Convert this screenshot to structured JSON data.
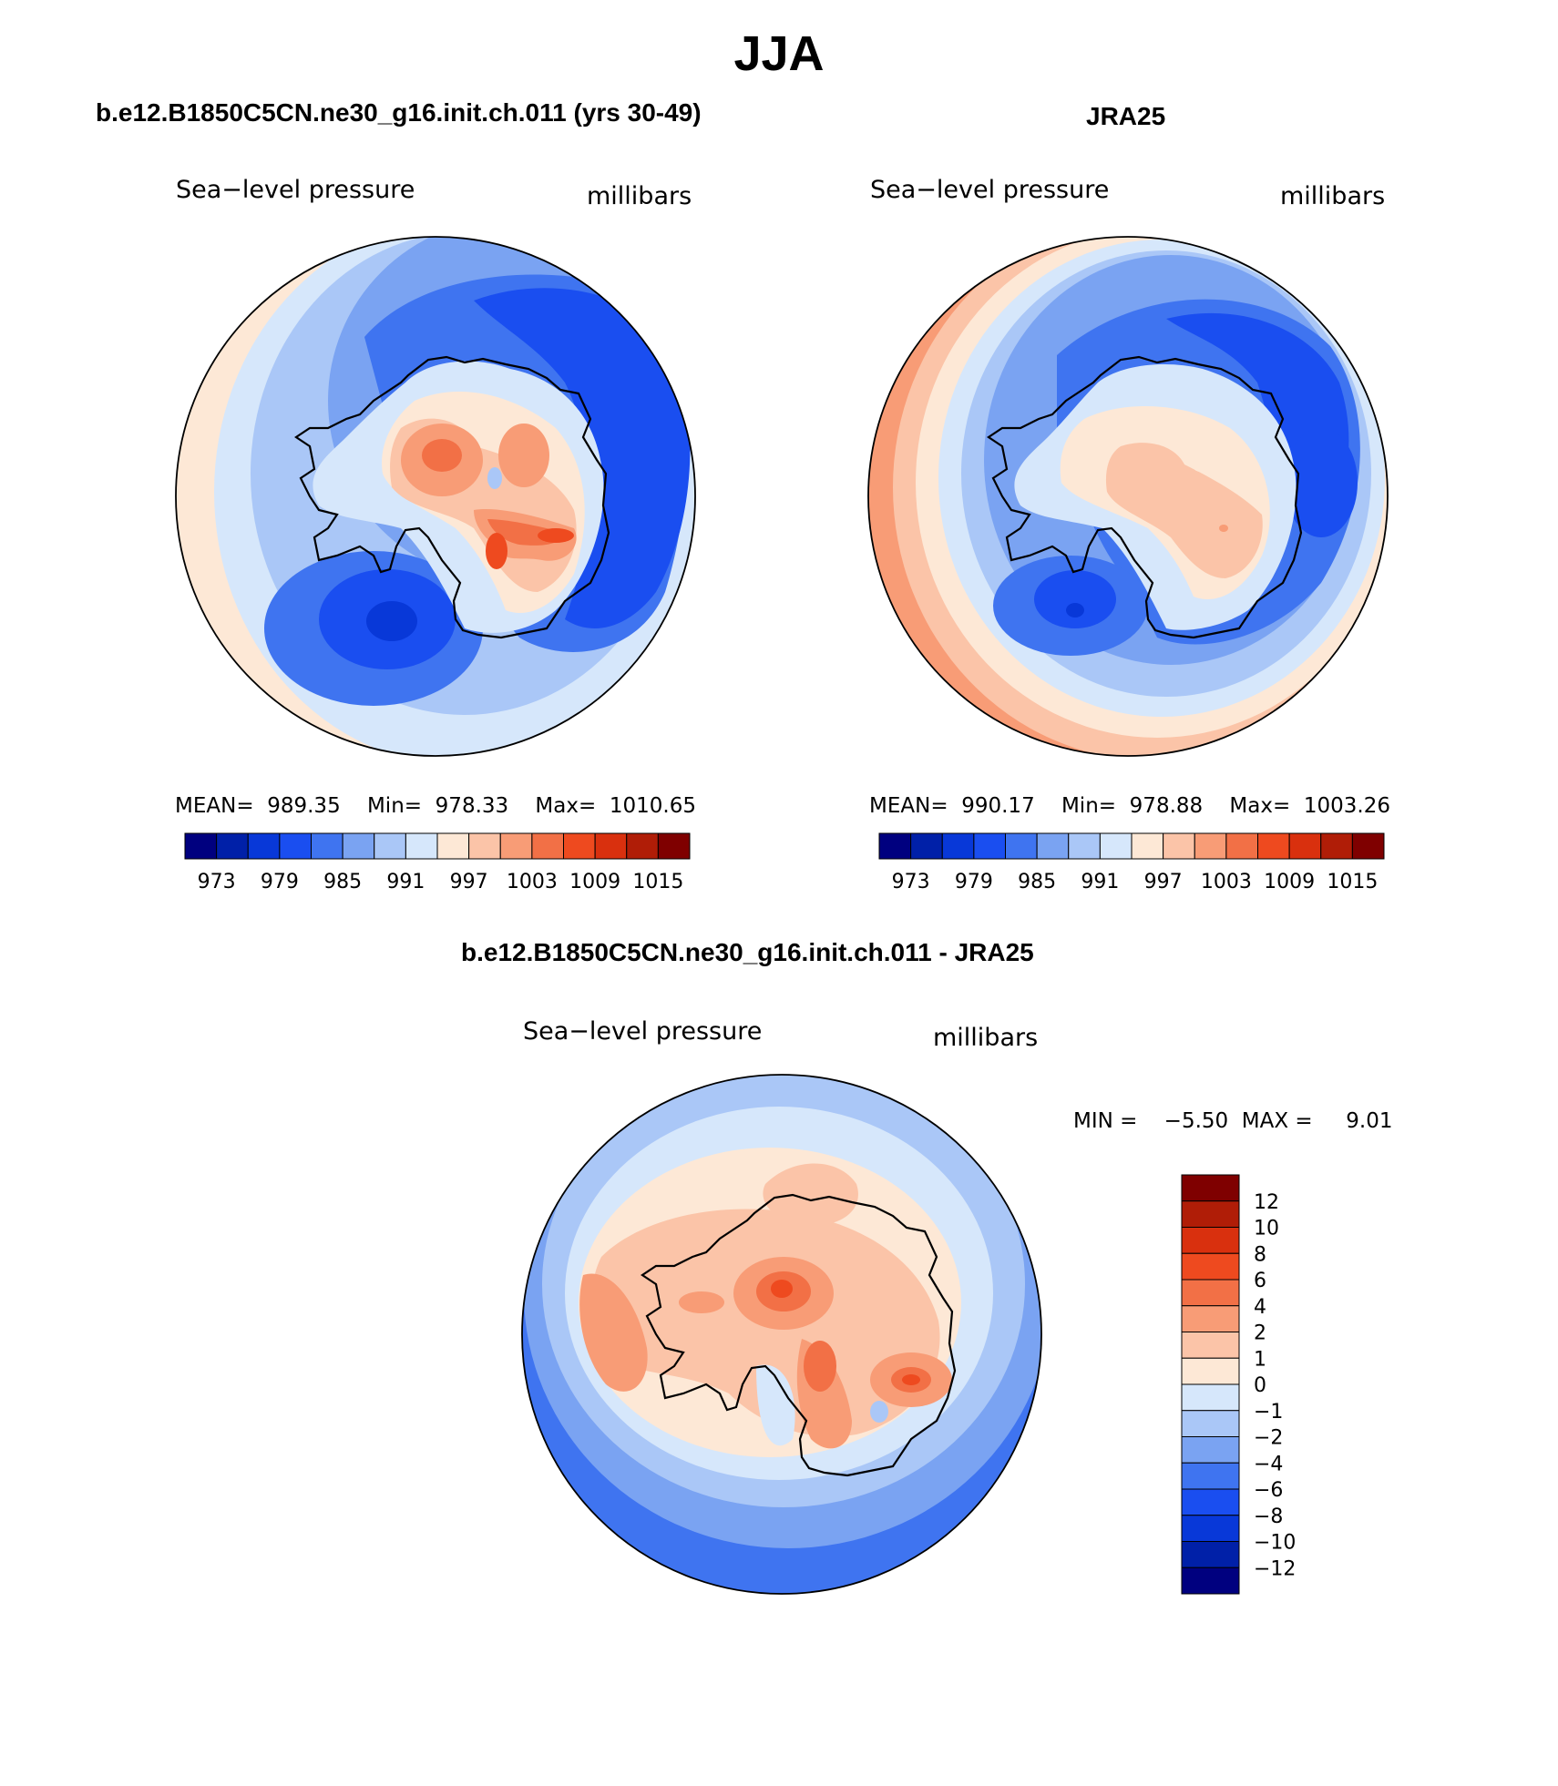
{
  "title": "JJA",
  "panels": [
    {
      "title": "b.e12.B1850C5CN.ne30_g16.init.ch.011 (yrs 30-49)",
      "variable": "Sea−level pressure",
      "units": "millibars",
      "stats": {
        "mean_label": "MEAN=",
        "mean": "989.35",
        "min_label": "Min=",
        "min": "978.33",
        "max_label": "Max=",
        "max": "1010.65"
      }
    },
    {
      "title": "JRA25",
      "variable": "Sea−level pressure",
      "units": "millibars",
      "stats": {
        "mean_label": "MEAN=",
        "mean": "990.17",
        "min_label": "Min=",
        "min": "978.88",
        "max_label": "Max=",
        "max": "1003.26"
      }
    },
    {
      "title": "b.e12.B1850C5CN.ne30_g16.init.ch.011 - JRA25",
      "variable": "Sea−level pressure",
      "units": "millibars",
      "stats": {
        "min_label": "MIN =",
        "min": "−5.50",
        "max_label": "MAX =",
        "max": "9.01"
      }
    }
  ],
  "colorbar_abs": {
    "colors": [
      "#00007f",
      "#0020a8",
      "#0838d8",
      "#1a4ef0",
      "#3f74f0",
      "#7aa3f2",
      "#aac7f7",
      "#d6e7fb",
      "#fde8d6",
      "#fbc4a8",
      "#f89c76",
      "#f27046",
      "#ee4a1f",
      "#d9300e",
      "#b01d07",
      "#7f0000"
    ],
    "tick_labels": [
      "973",
      "979",
      "985",
      "991",
      "997",
      "1003",
      "1009",
      "1015"
    ]
  },
  "colorbar_diff": {
    "colors": [
      "#00007f",
      "#0020a8",
      "#0838d8",
      "#1a4ef0",
      "#3f74f0",
      "#7aa3f2",
      "#aac7f7",
      "#d6e7fb",
      "#fde8d6",
      "#fbc4a8",
      "#f89c76",
      "#f27046",
      "#ee4a1f",
      "#d9300e",
      "#b01d07",
      "#7f0000"
    ],
    "tick_labels": [
      "12",
      "10",
      "8",
      "6",
      "4",
      "2",
      "1",
      "0",
      "−1",
      "−2",
      "−4",
      "−6",
      "−8",
      "−10",
      "−12"
    ]
  }
}
